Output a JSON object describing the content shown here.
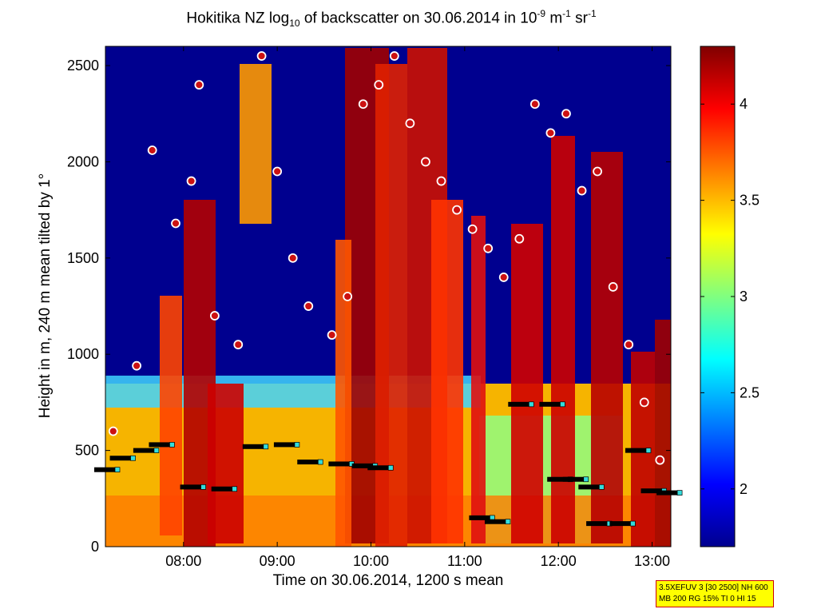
{
  "chart_data": {
    "type": "heatmap",
    "title_parts": {
      "a": "Hokitika NZ log",
      "b": "10",
      "c": " of backscatter on 30.06.2014 in 10",
      "d": "-9",
      "e": " m",
      "f": "-1",
      "g": " sr",
      "h": "-1"
    },
    "xlabel": "Time on 30.06.2014, 1200 s mean",
    "ylabel": "Height in m, 240 m mean tilted by 1°",
    "xlim": [
      "07:10",
      "13:12"
    ],
    "ylim": [
      0,
      2600
    ],
    "x_ticks": [
      "08:00",
      "09:00",
      "10:00",
      "11:00",
      "12:00",
      "13:00"
    ],
    "y_ticks": [
      "0",
      "500",
      "1000",
      "1500",
      "2000",
      "2500"
    ],
    "colorbar": {
      "range": [
        1.7,
        4.3
      ],
      "ticks": [
        "2",
        "2.5",
        "3",
        "3.5",
        "4"
      ],
      "colormap": [
        "#00008f",
        "#0000ff",
        "#0080ff",
        "#00ffff",
        "#80ff80",
        "#ffff00",
        "#ff8000",
        "#ff0000",
        "#800000"
      ]
    },
    "aerosol_layers": [
      {
        "t": "07:10",
        "h": 400
      },
      {
        "t": "07:20",
        "h": 460
      },
      {
        "t": "07:35",
        "h": 500
      },
      {
        "t": "07:45",
        "h": 530
      },
      {
        "t": "08:05",
        "h": 310
      },
      {
        "t": "08:25",
        "h": 300
      },
      {
        "t": "08:45",
        "h": 520
      },
      {
        "t": "09:05",
        "h": 530
      },
      {
        "t": "09:20",
        "h": 440
      },
      {
        "t": "09:40",
        "h": 430
      },
      {
        "t": "09:55",
        "h": 420
      },
      {
        "t": "10:05",
        "h": 410
      },
      {
        "t": "11:10",
        "h": 150
      },
      {
        "t": "11:20",
        "h": 130
      },
      {
        "t": "11:35",
        "h": 740
      },
      {
        "t": "11:55",
        "h": 740
      },
      {
        "t": "12:00",
        "h": 350
      },
      {
        "t": "12:10",
        "h": 350
      },
      {
        "t": "12:20",
        "h": 310
      },
      {
        "t": "12:25",
        "h": 120
      },
      {
        "t": "12:40",
        "h": 120
      },
      {
        "t": "12:50",
        "h": 500
      },
      {
        "t": "13:00",
        "h": 290
      },
      {
        "t": "13:10",
        "h": 280
      }
    ],
    "cloud_bases": [
      {
        "t": "07:15",
        "h": 600
      },
      {
        "t": "07:30",
        "h": 940
      },
      {
        "t": "07:40",
        "h": 2060
      },
      {
        "t": "07:55",
        "h": 1680
      },
      {
        "t": "08:05",
        "h": 1900
      },
      {
        "t": "08:10",
        "h": 2400
      },
      {
        "t": "08:20",
        "h": 1200
      },
      {
        "t": "08:35",
        "h": 1050
      },
      {
        "t": "08:50",
        "h": 2550
      },
      {
        "t": "09:00",
        "h": 1950
      },
      {
        "t": "09:10",
        "h": 1500
      },
      {
        "t": "09:20",
        "h": 1250
      },
      {
        "t": "09:35",
        "h": 1100
      },
      {
        "t": "09:45",
        "h": 1300
      },
      {
        "t": "09:55",
        "h": 2300
      },
      {
        "t": "10:05",
        "h": 2400
      },
      {
        "t": "10:15",
        "h": 2550
      },
      {
        "t": "10:25",
        "h": 2200
      },
      {
        "t": "10:35",
        "h": 2000
      },
      {
        "t": "10:45",
        "h": 1900
      },
      {
        "t": "10:55",
        "h": 1750
      },
      {
        "t": "11:05",
        "h": 1650
      },
      {
        "t": "11:15",
        "h": 1550
      },
      {
        "t": "11:25",
        "h": 1400
      },
      {
        "t": "11:35",
        "h": 1600
      },
      {
        "t": "11:45",
        "h": 2300
      },
      {
        "t": "11:55",
        "h": 2150
      },
      {
        "t": "12:05",
        "h": 2250
      },
      {
        "t": "12:15",
        "h": 1850
      },
      {
        "t": "12:25",
        "h": 1950
      },
      {
        "t": "12:35",
        "h": 1350
      },
      {
        "t": "12:45",
        "h": 1050
      },
      {
        "t": "12:55",
        "h": 750
      },
      {
        "t": "13:05",
        "h": 450
      }
    ]
  },
  "infobox": {
    "line1": "3.5XEFUV 3 [30 2500] NH 600",
    "line2": "MB 200 RG 15% TI 0 HI 15"
  }
}
